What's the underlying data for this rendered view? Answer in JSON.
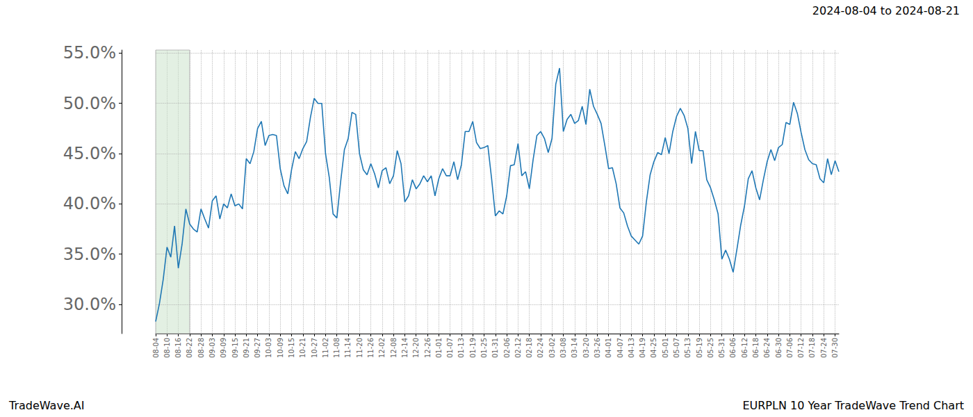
{
  "chart_data": {
    "type": "line",
    "title": "2024-08-04 to 2024-08-21",
    "annotations": [
      "TradeWave.AI",
      "EURPLN 10 Year TradeWave Trend Chart"
    ],
    "highlight": [
      "08-04",
      "08-22"
    ],
    "categories": [
      "08-04",
      null,
      null,
      "08-10",
      null,
      null,
      "08-16",
      null,
      null,
      "08-22",
      null,
      null,
      "08-28",
      null,
      null,
      "09-03",
      null,
      null,
      "09-09",
      null,
      null,
      "09-15",
      null,
      null,
      "09-21",
      null,
      null,
      "09-27",
      null,
      null,
      "10-03",
      null,
      null,
      "10-09",
      null,
      null,
      "10-15",
      null,
      null,
      "10-21",
      null,
      null,
      "10-27",
      null,
      null,
      "11-02",
      null,
      null,
      "11-08",
      null,
      null,
      "11-14",
      null,
      null,
      "11-20",
      null,
      null,
      "11-26",
      null,
      null,
      "12-02",
      null,
      null,
      "12-08",
      null,
      null,
      "12-14",
      null,
      null,
      "12-20",
      null,
      null,
      "12-26",
      null,
      null,
      "01-01",
      null,
      null,
      "01-07",
      null,
      null,
      "01-13",
      null,
      null,
      "01-19",
      null,
      null,
      "01-25",
      null,
      null,
      "01-31",
      null,
      null,
      "02-06",
      null,
      null,
      "02-12",
      null,
      null,
      "02-18",
      null,
      null,
      "02-24",
      null,
      null,
      "03-02",
      null,
      null,
      "03-08",
      null,
      null,
      "03-14",
      null,
      null,
      "03-20",
      null,
      null,
      "03-26",
      null,
      null,
      "04-01",
      null,
      null,
      "04-07",
      null,
      null,
      "04-13",
      null,
      null,
      "04-19",
      null,
      null,
      "04-25",
      null,
      null,
      "05-01",
      null,
      null,
      "05-07",
      null,
      null,
      "05-13",
      null,
      null,
      "05-19",
      null,
      null,
      "05-25",
      null,
      null,
      "05-31",
      null,
      null,
      "06-06",
      null,
      null,
      "06-12",
      null,
      null,
      "06-18",
      null,
      null,
      "06-24",
      null,
      null,
      "06-30",
      null,
      null,
      "07-06",
      null,
      null,
      "07-12",
      null,
      null,
      "07-18",
      null,
      null,
      "07-24",
      null,
      null,
      "07-30",
      null
    ],
    "values": [
      28.3,
      30.1,
      32.5,
      35.7,
      34.7,
      37.8,
      33.6,
      36.0,
      39.5,
      38.0,
      37.5,
      37.2,
      39.5,
      38.5,
      37.6,
      40.3,
      40.8,
      38.5,
      40.0,
      39.6,
      41.0,
      39.8,
      40.0,
      39.5,
      44.5,
      44.0,
      45.2,
      47.5,
      48.2,
      45.8,
      46.8,
      46.9,
      46.8,
      43.5,
      41.8,
      41.0,
      43.4,
      45.2,
      44.5,
      45.5,
      46.2,
      48.6,
      50.5,
      50.0,
      50.0,
      45.0,
      42.6,
      39.0,
      38.6,
      42.2,
      45.4,
      46.5,
      49.1,
      48.9,
      45.0,
      43.4,
      42.9,
      44.0,
      43.0,
      41.6,
      43.3,
      43.6,
      42.0,
      42.8,
      45.3,
      44.0,
      40.2,
      40.8,
      42.4,
      41.5,
      42.0,
      42.8,
      42.2,
      42.8,
      40.8,
      42.5,
      43.5,
      42.8,
      42.8,
      44.2,
      42.4,
      43.9,
      47.2,
      47.2,
      48.2,
      46.1,
      45.5,
      45.6,
      45.8,
      42.5,
      38.8,
      39.3,
      39.0,
      40.8,
      43.8,
      43.9,
      46.0,
      42.8,
      43.2,
      41.5,
      44.4,
      46.8,
      47.2,
      46.5,
      45.1,
      46.5,
      51.9,
      53.5,
      47.2,
      48.4,
      48.9,
      48.0,
      48.3,
      49.7,
      47.9,
      51.4,
      49.7,
      48.9,
      48.0,
      45.8,
      43.5,
      43.6,
      42.0,
      39.6,
      39.1,
      37.8,
      36.8,
      36.4,
      36.0,
      36.8,
      40.2,
      42.9,
      44.2,
      45.1,
      44.9,
      46.6,
      45.0,
      47.2,
      48.7,
      49.5,
      48.8,
      47.5,
      44.0,
      47.2,
      45.3,
      45.3,
      42.4,
      41.6,
      40.4,
      39.0,
      34.5,
      35.4,
      34.5,
      33.2,
      35.5,
      37.9,
      39.8,
      42.5,
      43.3,
      41.6,
      40.4,
      42.4,
      44.2,
      45.4,
      44.3,
      45.6,
      45.9,
      48.1,
      47.9,
      50.1,
      49.0,
      47.1,
      45.4,
      44.4,
      44.0,
      43.9,
      42.5,
      42.1,
      44.5,
      42.9,
      44.3,
      43.2
    ],
    "color": "#1f77b4",
    "ylim": [
      27.1,
      55.3
    ],
    "yticks": [
      {
        "value": 30,
        "label": "30.0%"
      },
      {
        "value": 35,
        "label": "35.0%"
      },
      {
        "value": 40,
        "label": "40.0%"
      },
      {
        "value": 45,
        "label": "45.0%"
      },
      {
        "value": 50,
        "label": "50.0%"
      },
      {
        "value": 55,
        "label": "55.0%"
      }
    ],
    "grid": true
  }
}
